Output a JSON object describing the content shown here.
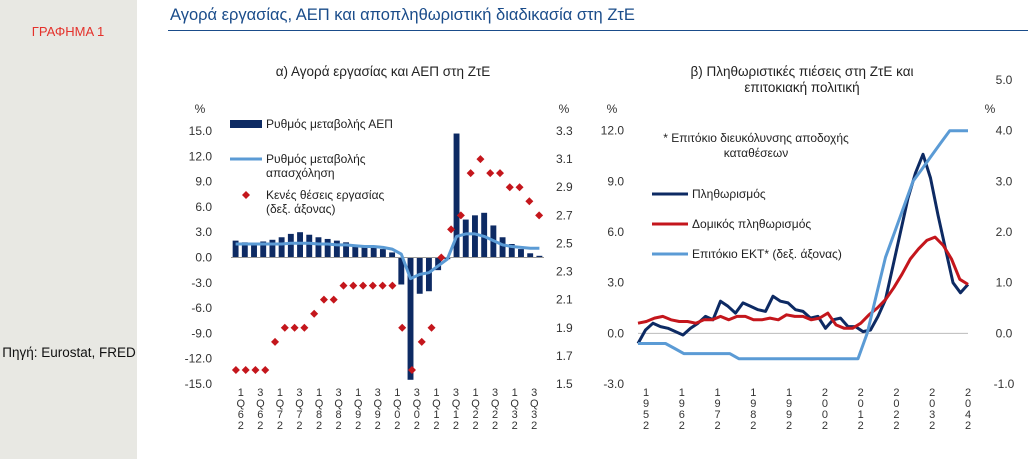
{
  "side_label": "ΓΡΑΦΗΜΑ 1",
  "source": "Πηγή: Eurostat, FRED",
  "main_title": "Αγορά εργασίας, ΑΕΠ και αποπληθωριστική διαδικασία στη ΖτΕ",
  "colors": {
    "gdp": "#0d2a63",
    "employment": "#5b9bd5",
    "vacancies": "#c4161c",
    "inflation": "#0d2a63",
    "core": "#c4161c",
    "ecb_rate": "#5b9bd5"
  },
  "chart_data": [
    {
      "type": "bar",
      "title": "α) Αγορά εργασίας και ΑΕΠ στη ΖτΕ",
      "left_unit": "%",
      "right_unit": "%",
      "y_left": {
        "min": -15,
        "max": 15,
        "ticks": [
          "15.0",
          "12.0",
          "9.0",
          "6.0",
          "3.0",
          "0.0",
          "-3.0",
          "-6.0",
          "-9.0",
          "-12.0",
          "-15.0"
        ]
      },
      "y_right": {
        "min": 1.5,
        "max": 3.3,
        "ticks": [
          "3.3",
          "3.1",
          "2.9",
          "2.7",
          "2.5",
          "2.3",
          "2.1",
          "1.9",
          "1.7",
          "1.5"
        ]
      },
      "x_tick_labels": [
        "1Q62",
        "3Q62",
        "1Q72",
        "3Q72",
        "1Q82",
        "3Q82",
        "1Q92",
        "3Q92",
        "1Q02",
        "3Q02",
        "1Q12",
        "3Q12",
        "1Q22",
        "3Q22",
        "1Q32",
        "3Q32"
      ],
      "legend": [
        "Ρυθμός μεταβολής ΑΕΠ",
        "Ρυθμός μεταβολής απασχόληση",
        "Κενές θέσεις εργασίας (δεξ. άξονας)"
      ],
      "series": [
        {
          "name": "Ρυθμός μεταβολής ΑΕΠ",
          "kind": "bar",
          "axis": "left",
          "values": [
            2.0,
            1.8,
            1.7,
            1.9,
            2.1,
            2.4,
            2.8,
            3.0,
            2.7,
            2.4,
            2.2,
            2.0,
            1.8,
            1.4,
            1.2,
            1.3,
            1.0,
            0.6,
            -3.2,
            -14.5,
            -4.3,
            -4.0,
            -1.5,
            -0.2,
            14.7,
            4.5,
            5.0,
            5.3,
            3.8,
            2.4,
            1.6,
            1.0,
            0.5,
            0.2
          ]
        },
        {
          "name": "Ρυθμός μεταβολής απασχόληση",
          "kind": "line",
          "axis": "left",
          "values": [
            1.6,
            1.6,
            1.6,
            1.6,
            1.6,
            1.6,
            1.7,
            1.7,
            1.7,
            1.6,
            1.6,
            1.5,
            1.5,
            1.4,
            1.3,
            1.3,
            1.2,
            1.0,
            0.4,
            -2.5,
            -2.0,
            -1.8,
            -1.0,
            -0.2,
            2.5,
            2.8,
            2.8,
            2.5,
            2.0,
            1.5,
            1.3,
            1.2,
            1.1,
            1.1
          ]
        },
        {
          "name": "Κενές θέσεις εργασίας (δεξ. άξονας)",
          "kind": "marker",
          "axis": "right",
          "values": [
            1.6,
            1.6,
            1.6,
            1.6,
            1.8,
            1.9,
            1.9,
            1.9,
            2.0,
            2.1,
            2.1,
            2.2,
            2.2,
            2.2,
            2.2,
            2.2,
            2.2,
            1.9,
            1.6,
            1.8,
            1.9,
            2.4,
            2.6,
            2.7,
            3.0,
            3.1,
            3.0,
            3.0,
            2.9,
            2.9,
            2.8,
            2.7
          ]
        }
      ]
    },
    {
      "type": "line",
      "title_line1": "β) Πληθωριστικές πιέσεις στη ΖτΕ και",
      "title_line2": "επιτοκιακή πολιτική",
      "left_unit": "%",
      "right_unit": "%",
      "note_line1": "* Επιτόκιο διευκόλυνσης αποδοχής",
      "note_line2": "καταθέσεων",
      "y_left": {
        "min": -3,
        "max": 15,
        "ticks": [
          "12.0",
          "9.0",
          "6.0",
          "3.0",
          "0.0",
          "-3.0"
        ]
      },
      "y_right": {
        "min": -1,
        "max": 5,
        "ticks": [
          "5.0",
          "4.0",
          "3.0",
          "2.0",
          "1.0",
          "0.0",
          "-1.0"
        ]
      },
      "x_tick_labels": [
        "1952",
        "1962",
        "1972",
        "1982",
        "1992",
        "2002",
        "2012",
        "2022",
        "2032",
        "2042"
      ],
      "legend": [
        "Πληθωρισμός",
        "Δομικός πληθωρισμός",
        "Επιτόκιο ΕΚΤ* (δεξ. άξονας)"
      ],
      "series": [
        {
          "name": "Πληθωρισμός",
          "axis": "left",
          "values": [
            -0.6,
            0.2,
            0.6,
            0.4,
            0.3,
            0.1,
            -0.1,
            0.3,
            0.6,
            1.0,
            0.8,
            1.9,
            1.6,
            1.2,
            1.8,
            1.6,
            1.4,
            1.3,
            2.2,
            1.9,
            1.8,
            1.4,
            1.3,
            0.9,
            1.0,
            0.3,
            0.8,
            0.9,
            0.4,
            0.4,
            0.1,
            0.2,
            1.0,
            2.0,
            4.0,
            6.0,
            8.0,
            9.5,
            10.6,
            9.2,
            7.0,
            5.0,
            3.0,
            2.4,
            2.9
          ]
        },
        {
          "name": "Δομικός πληθωρισμός",
          "axis": "left",
          "values": [
            0.6,
            0.7,
            0.9,
            1.0,
            0.8,
            0.7,
            0.7,
            0.6,
            0.8,
            0.8,
            1.0,
            0.8,
            1.0,
            1.0,
            0.8,
            0.8,
            0.9,
            0.8,
            1.1,
            1.0,
            1.0,
            0.8,
            0.9,
            1.2,
            0.5,
            0.3,
            0.3,
            0.6,
            1.1,
            1.5,
            2.0,
            2.7,
            3.5,
            4.4,
            5.0,
            5.5,
            5.7,
            5.2,
            4.4,
            3.2,
            2.9
          ]
        },
        {
          "name": "Επιτόκιο ΕΚΤ* (δεξ. άξονας)",
          "axis": "right",
          "values": [
            -0.2,
            -0.2,
            -0.2,
            -0.2,
            -0.3,
            -0.4,
            -0.4,
            -0.4,
            -0.4,
            -0.4,
            -0.4,
            -0.5,
            -0.5,
            -0.5,
            -0.5,
            -0.5,
            -0.5,
            -0.5,
            -0.5,
            -0.5,
            -0.5,
            -0.5,
            -0.5,
            -0.5,
            -0.5,
            0.0,
            0.75,
            1.5,
            2.0,
            2.5,
            3.0,
            3.25,
            3.5,
            3.75,
            4.0,
            4.0,
            4.0
          ]
        }
      ]
    }
  ]
}
